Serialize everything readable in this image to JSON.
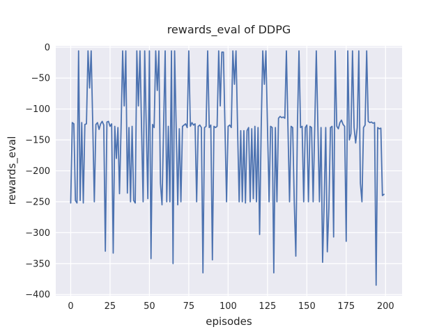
{
  "chart_data": {
    "type": "line",
    "title": "rewards_eval of DDPG",
    "xlabel": "episodes",
    "ylabel": "rewards_eval",
    "xticks": [
      0,
      25,
      50,
      75,
      100,
      125,
      150,
      175,
      200
    ],
    "yticks": [
      0,
      -50,
      -100,
      -150,
      -200,
      -250,
      -300,
      -350,
      -400
    ],
    "xlim": [
      -9.5,
      210.5
    ],
    "ylim": [
      -402,
      2
    ],
    "grid": true,
    "legend": "none",
    "x_start": 0,
    "x_step": 1,
    "n_points": 200,
    "series": [
      {
        "name": "rewards_eval",
        "values": [
          -252,
          -122,
          -124,
          -248,
          -252,
          -6,
          -248,
          -122,
          -252,
          -125,
          -124,
          -6,
          -66,
          -6,
          -125,
          -250,
          -125,
          -122,
          -133,
          -124,
          -120,
          -126,
          -330,
          -121,
          -120,
          -128,
          -124,
          -333,
          -128,
          -180,
          -130,
          -237,
          -130,
          -6,
          -95,
          -6,
          -236,
          -130,
          -250,
          -128,
          -248,
          -252,
          -6,
          -95,
          -6,
          -130,
          -250,
          -6,
          -130,
          -245,
          -6,
          -342,
          -125,
          -130,
          -6,
          -70,
          -6,
          -220,
          -255,
          -130,
          -6,
          -250,
          -128,
          -250,
          -6,
          -350,
          -6,
          -130,
          -255,
          -132,
          -250,
          -128,
          -126,
          -124,
          -130,
          -6,
          -128,
          -122,
          -126,
          -124,
          -250,
          -128,
          -126,
          -130,
          -365,
          -130,
          -128,
          -6,
          -130,
          -126,
          -344,
          -128,
          -130,
          -128,
          -6,
          -95,
          -8,
          -8,
          -130,
          -250,
          -128,
          -126,
          -130,
          -6,
          -60,
          -6,
          -132,
          -250,
          -135,
          -250,
          -135,
          -252,
          -135,
          -130,
          -250,
          -132,
          -245,
          -128,
          -250,
          -130,
          -303,
          -130,
          -6,
          -60,
          -6,
          -130,
          -250,
          -128,
          -130,
          -365,
          -130,
          -250,
          -115,
          -112,
          -114,
          -113,
          -115,
          -6,
          -130,
          -250,
          -128,
          -130,
          -250,
          -338,
          -130,
          -6,
          -130,
          -128,
          -250,
          -130,
          -126,
          -250,
          -128,
          -130,
          -250,
          -130,
          -6,
          -128,
          -250,
          -130,
          -348,
          -250,
          -130,
          -331,
          -260,
          -130,
          -128,
          -307,
          -6,
          -128,
          -132,
          -122,
          -118,
          -125,
          -128,
          -314,
          -6,
          -150,
          -140,
          -6,
          -130,
          -155,
          -130,
          -6,
          -220,
          -250,
          -130,
          -126,
          -6,
          -120,
          -122,
          -121,
          -123,
          -122,
          -385,
          -130,
          -132,
          -131,
          -240,
          -238
        ]
      }
    ],
    "colors": {
      "line": "#4c72b0",
      "axes_background": "#eaeaf2",
      "grid": "#ffffff",
      "figure_background": "#ffffff",
      "text": "#262626"
    }
  }
}
